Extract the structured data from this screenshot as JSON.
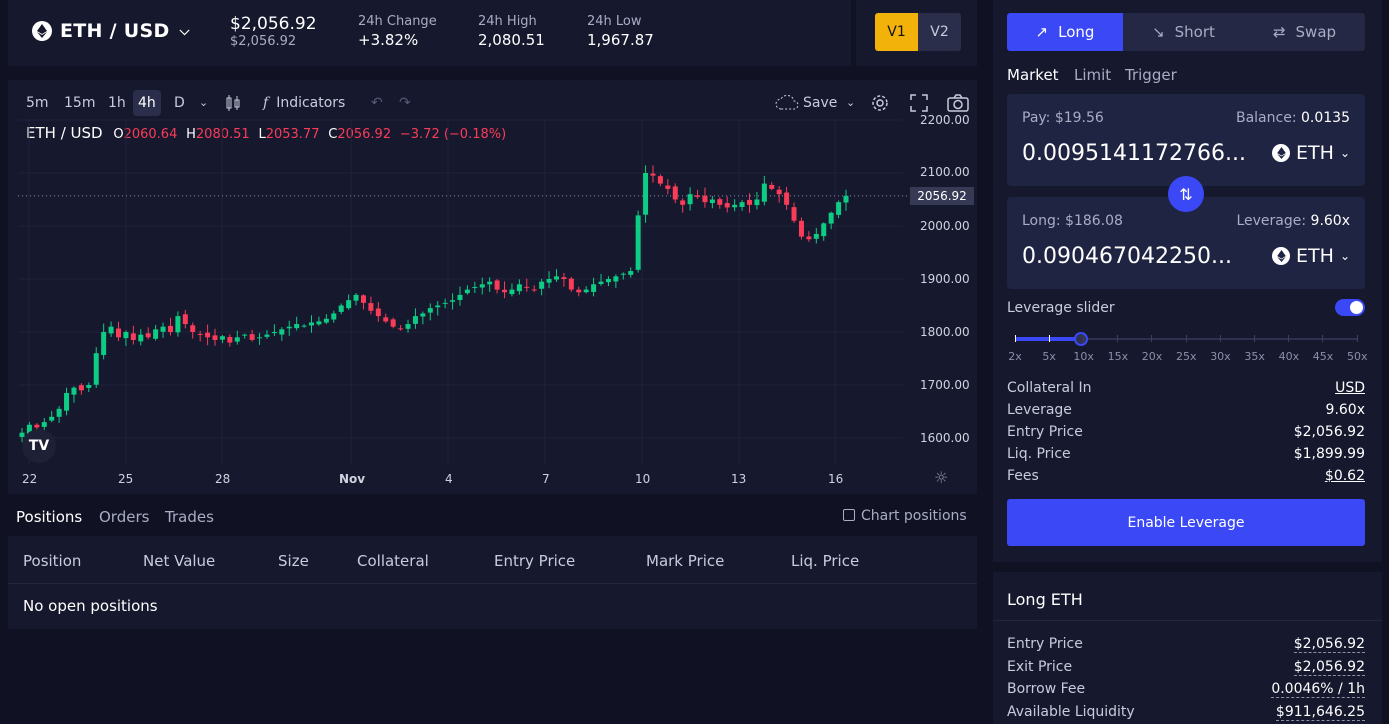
{
  "header": {
    "pair": "ETH / USD",
    "price": "$2,056.92",
    "price_sub": "$2,056.92",
    "change_label": "24h Change",
    "change_value": "+3.82%",
    "high_label": "24h High",
    "high_value": "2,080.51",
    "low_label": "24h Low",
    "low_value": "1,967.87",
    "v1": "V1",
    "v2": "V2"
  },
  "toolbar": {
    "intervals": [
      "5m",
      "15m",
      "1h",
      "4h",
      "D"
    ],
    "active_interval": "4h",
    "indicators": "Indicators",
    "save": "Save"
  },
  "legend": {
    "pair": "ETH / USD",
    "o_label": "O",
    "o": "2060.64",
    "h_label": "H",
    "h": "2080.51",
    "l_label": "L",
    "l": "2053.77",
    "c_label": "C",
    "c": "2056.92",
    "change": "−3.72 (−0.18%)"
  },
  "chart_data": {
    "type": "candlestick",
    "y_ticks": [
      "2200.00",
      "2100.00",
      "2000.00",
      "1900.00",
      "1800.00",
      "1700.00",
      "1600.00"
    ],
    "ylim": [
      1560,
      2200
    ],
    "x_ticks": [
      "22",
      "25",
      "28",
      "Nov",
      "4",
      "7",
      "10",
      "13",
      "16"
    ],
    "last_price": "2056.92",
    "closes": [
      1610,
      1625,
      1620,
      1630,
      1640,
      1655,
      1685,
      1695,
      1690,
      1700,
      1760,
      1800,
      1810,
      1790,
      1800,
      1785,
      1795,
      1790,
      1805,
      1810,
      1800,
      1830,
      1815,
      1800,
      1795,
      1790,
      1785,
      1792,
      1780,
      1790,
      1795,
      1785,
      1790,
      1795,
      1800,
      1805,
      1810,
      1815,
      1812,
      1818,
      1820,
      1825,
      1835,
      1850,
      1860,
      1870,
      1855,
      1840,
      1830,
      1820,
      1810,
      1805,
      1815,
      1830,
      1835,
      1845,
      1850,
      1855,
      1860,
      1870,
      1880,
      1885,
      1890,
      1895,
      1880,
      1875,
      1880,
      1890,
      1885,
      1880,
      1895,
      1900,
      1905,
      1900,
      1880,
      1875,
      1880,
      1890,
      1895,
      1900,
      1905,
      1910,
      1915,
      2020,
      2100,
      2095,
      2080,
      2070,
      2050,
      2040,
      2060,
      2055,
      2045,
      2050,
      2040,
      2035,
      2040,
      2045,
      2040,
      2050,
      2080,
      2070,
      2060,
      2040,
      2010,
      1980,
      1975,
      1985,
      2005,
      2025,
      2045,
      2057
    ]
  },
  "positions": {
    "tabs": [
      "Positions",
      "Orders",
      "Trades"
    ],
    "chart_positions": "Chart positions",
    "columns": [
      "Position",
      "Net Value",
      "Size",
      "Collateral",
      "Entry Price",
      "Mark Price",
      "Liq. Price"
    ],
    "empty": "No open positions"
  },
  "trade": {
    "tabs": [
      "Long",
      "Short",
      "Swap"
    ],
    "order_types": [
      "Market",
      "Limit",
      "Trigger"
    ],
    "pay_label": "Pay: $19.56",
    "balance_label": "Balance:",
    "balance_value": "0.0135",
    "pay_amount": "0.0095141172766...",
    "token": "ETH",
    "long_label": "Long: $186.08",
    "leverage_label": "Leverage:",
    "leverage_value": "9.60x",
    "long_amount": "0.090467042250...",
    "slider_label": "Leverage slider",
    "slider_ticks": [
      "2x",
      "5x",
      "10x",
      "15x",
      "20x",
      "25x",
      "30x",
      "35x",
      "40x",
      "45x",
      "50x"
    ],
    "slider_value": 9.6,
    "info": [
      {
        "label": "Collateral In",
        "value": "USD"
      },
      {
        "label": "Leverage",
        "value": "9.60x"
      },
      {
        "label": "Entry Price",
        "value": "$2,056.92"
      },
      {
        "label": "Liq. Price",
        "value": "$1,899.99"
      },
      {
        "label": "Fees",
        "value": "$0.62"
      }
    ],
    "cta": "Enable Leverage"
  },
  "summary": {
    "title": "Long ETH",
    "rows": [
      {
        "label": "Entry Price",
        "value": "$2,056.92"
      },
      {
        "label": "Exit Price",
        "value": "$2,056.92"
      },
      {
        "label": "Borrow Fee",
        "value": "0.0046% / 1h"
      },
      {
        "label": "Available Liquidity",
        "value": "$911,646.25"
      }
    ]
  },
  "colors": {
    "accent": "#3a49f5",
    "up": "#0ecc83",
    "down": "#fa3c58",
    "v1": "#f2b20a"
  }
}
